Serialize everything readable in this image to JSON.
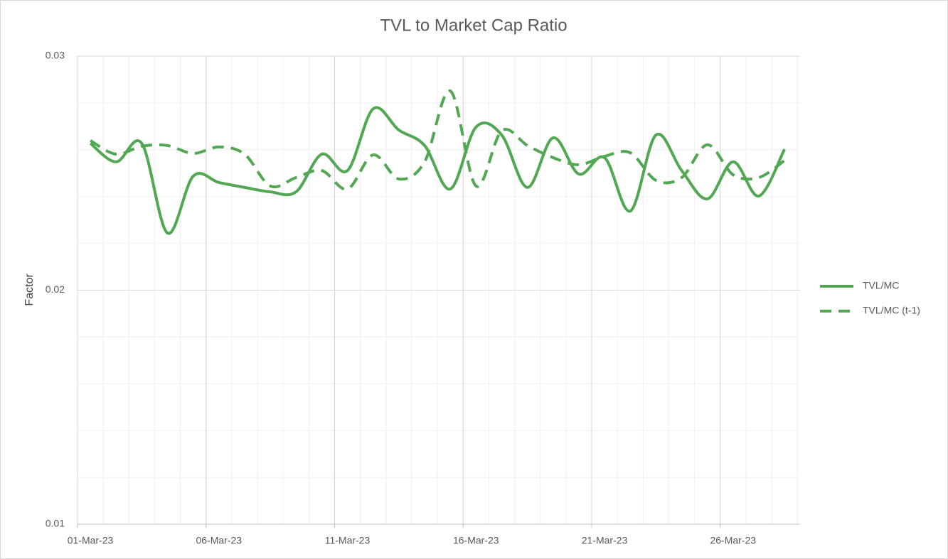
{
  "chart_data": {
    "type": "line",
    "title": "TVL to Market Cap Ratio",
    "y_label": "Factor",
    "categories": [
      "01-Mar-23",
      null,
      null,
      null,
      null,
      "06-Mar-23",
      null,
      null,
      null,
      null,
      "11-Mar-23",
      null,
      null,
      null,
      null,
      "16-Mar-23",
      null,
      null,
      null,
      null,
      "21-Mar-23",
      null,
      null,
      null,
      null,
      "26-Mar-23",
      null,
      null
    ],
    "series": [
      {
        "name": "TVL/MC",
        "color": "#52a852",
        "dash": false,
        "values": [
          0.02627,
          0.02548,
          0.02627,
          0.02244,
          0.02487,
          0.0246,
          0.02439,
          0.0242,
          0.0242,
          0.02581,
          0.02511,
          0.02775,
          0.02684,
          0.02618,
          0.02432,
          0.02697,
          0.02663,
          0.02439,
          0.02651,
          0.02496,
          0.02566,
          0.02338,
          0.02663,
          0.02511,
          0.0239,
          0.02548,
          0.02402,
          0.02602
        ]
      },
      {
        "name": "TVL/MC (t-1)",
        "color": "#52a852",
        "dash": true,
        "values": [
          0.02639,
          0.02581,
          0.02615,
          0.02618,
          0.02584,
          0.02612,
          0.02581,
          0.02445,
          0.02481,
          0.02511,
          0.02432,
          0.02578,
          0.02475,
          0.02548,
          0.02851,
          0.02445,
          0.02681,
          0.02618,
          0.02566,
          0.02536,
          0.02572,
          0.02587,
          0.02469,
          0.02481,
          0.02621,
          0.02493,
          0.02481,
          0.02554
        ]
      }
    ],
    "ylim": [
      0.01,
      0.03
    ],
    "yticks": [
      0.01,
      0.02,
      0.03
    ],
    "grid": true,
    "smooth": true,
    "legend": "right"
  }
}
